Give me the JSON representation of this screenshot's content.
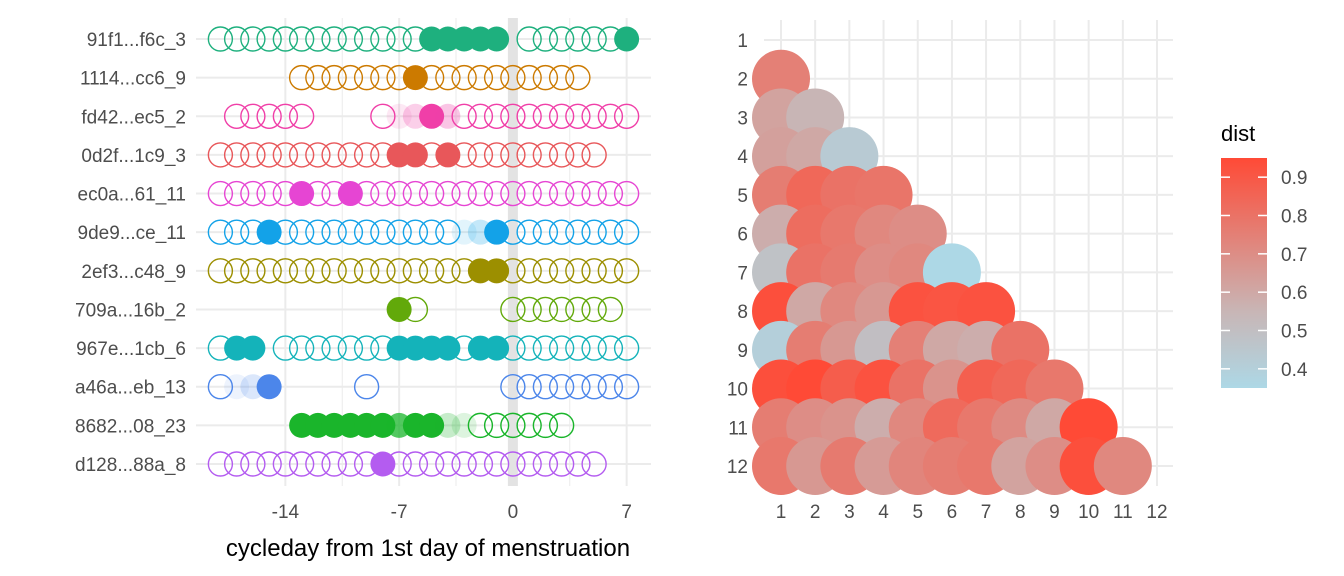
{
  "chart_data": [
    {
      "type": "scatter",
      "xlabel": "cycleday from 1st day of menstruation",
      "ylabel": "",
      "xlim": [
        -19.5,
        8.5
      ],
      "xticks": [
        -14,
        -7,
        0,
        7
      ],
      "xtick_labels": [
        "-14",
        "-7",
        "0",
        "7"
      ],
      "grid": true,
      "reference_line_x": 0,
      "series": [
        {
          "name": "91f1...f6c_3",
          "color": "#1EB07E",
          "open": [
            -18,
            -17,
            -16,
            -15,
            -14,
            -13,
            -12,
            -11,
            -10,
            -9,
            -8,
            -7,
            -6,
            1,
            2,
            3,
            4,
            5,
            6
          ],
          "filled": [
            {
              "x": -5,
              "a": 1
            },
            {
              "x": -4,
              "a": 1
            },
            {
              "x": -3,
              "a": 1
            },
            {
              "x": -2,
              "a": 1
            },
            {
              "x": -1,
              "a": 1
            },
            {
              "x": 7,
              "a": 1
            }
          ]
        },
        {
          "name": "1114...cc6_9",
          "color": "#CC7A00",
          "open": [
            -13,
            -12,
            -11,
            -10,
            -9,
            -8,
            -7,
            -5,
            -4,
            -3,
            -2,
            -1,
            0,
            1,
            2,
            3,
            4
          ],
          "filled": [
            {
              "x": -6,
              "a": 1
            }
          ]
        },
        {
          "name": "fd42...ec5_2",
          "color": "#F03FA8",
          "open": [
            -17,
            -16,
            -15,
            -14,
            -13,
            -8,
            -3,
            -2,
            -1,
            0,
            1,
            2,
            3,
            4,
            5,
            6,
            7
          ],
          "filled": [
            {
              "x": -7,
              "a": 0.12
            },
            {
              "x": -6,
              "a": 0.25
            },
            {
              "x": -5,
              "a": 1
            },
            {
              "x": -4,
              "a": 0.3
            }
          ]
        },
        {
          "name": "0d2f...1c9_3",
          "color": "#E8575A",
          "open": [
            -18,
            -17,
            -16,
            -15,
            -14,
            -13,
            -12,
            -11,
            -10,
            -9,
            -8,
            -5,
            -3,
            -2,
            -1,
            0,
            1,
            2,
            3,
            4,
            5
          ],
          "filled": [
            {
              "x": -7,
              "a": 1
            },
            {
              "x": -6,
              "a": 1
            },
            {
              "x": -4,
              "a": 1
            }
          ]
        },
        {
          "name": "ec0a...61_11",
          "color": "#E645D3",
          "open": [
            -18,
            -17,
            -16,
            -15,
            -14,
            -12,
            -11,
            -9,
            -8,
            -7,
            -6,
            -5,
            -4,
            -3,
            -2,
            -1,
            0,
            1,
            2,
            3,
            4,
            5,
            6,
            7
          ],
          "filled": [
            {
              "x": -13,
              "a": 1
            },
            {
              "x": -10,
              "a": 1
            }
          ]
        },
        {
          "name": "9de9...ce_11",
          "color": "#13A2E8",
          "open": [
            -18,
            -17,
            -16,
            -14,
            -13,
            -12,
            -11,
            -10,
            -9,
            -8,
            -7,
            -6,
            -5,
            -4,
            0,
            1,
            2,
            3,
            4,
            5,
            6,
            7
          ],
          "filled": [
            {
              "x": -15,
              "a": 1
            },
            {
              "x": -3,
              "a": 0.12
            },
            {
              "x": -2,
              "a": 0.25
            },
            {
              "x": -1,
              "a": 1
            }
          ]
        },
        {
          "name": "2ef3...c48_9",
          "color": "#9C8F00",
          "open": [
            -18,
            -17,
            -16,
            -15,
            -14,
            -13,
            -12,
            -11,
            -10,
            -9,
            -8,
            -7,
            -6,
            -5,
            -4,
            -3,
            0,
            1,
            2,
            3,
            4,
            5,
            6,
            7
          ],
          "filled": [
            {
              "x": -2,
              "a": 1
            },
            {
              "x": -1,
              "a": 1
            }
          ]
        },
        {
          "name": "709a...16b_2",
          "color": "#62A90A",
          "open": [
            -6,
            0,
            1,
            2,
            3,
            4,
            5,
            6
          ],
          "filled": [
            {
              "x": -7,
              "a": 1
            }
          ]
        },
        {
          "name": "967e...1cb_6",
          "color": "#14B3BA",
          "open": [
            -18,
            -14,
            -13,
            -12,
            -11,
            -10,
            -9,
            -8,
            -3,
            0,
            1,
            2,
            3,
            4,
            5,
            6,
            7
          ],
          "filled": [
            {
              "x": -17,
              "a": 1
            },
            {
              "x": -16,
              "a": 1
            },
            {
              "x": -7,
              "a": 1
            },
            {
              "x": -6,
              "a": 1
            },
            {
              "x": -5,
              "a": 1
            },
            {
              "x": -4,
              "a": 1
            },
            {
              "x": -2,
              "a": 1
            },
            {
              "x": -1,
              "a": 1
            }
          ]
        },
        {
          "name": "a46a...eb_13",
          "color": "#4C86EA",
          "open": [
            -18,
            -9,
            0,
            1,
            2,
            3,
            4,
            5,
            6,
            7
          ],
          "filled": [
            {
              "x": -17,
              "a": 0.1
            },
            {
              "x": -16,
              "a": 0.2
            },
            {
              "x": -15,
              "a": 1
            }
          ]
        },
        {
          "name": "8682...08_23",
          "color": "#1AB52B",
          "open": [
            -2,
            -1,
            0,
            1,
            2,
            3
          ],
          "filled": [
            {
              "x": -13,
              "a": 1
            },
            {
              "x": -12,
              "a": 1
            },
            {
              "x": -11,
              "a": 1
            },
            {
              "x": -10,
              "a": 1
            },
            {
              "x": -9,
              "a": 1
            },
            {
              "x": -8,
              "a": 1
            },
            {
              "x": -7,
              "a": 0.75
            },
            {
              "x": -6,
              "a": 1
            },
            {
              "x": -5,
              "a": 1
            },
            {
              "x": -4,
              "a": 0.25
            },
            {
              "x": -3,
              "a": 0.15
            }
          ]
        },
        {
          "name": "d128...88a_8",
          "color": "#B45CF0",
          "open": [
            -18,
            -17,
            -16,
            -15,
            -14,
            -13,
            -12,
            -11,
            -10,
            -9,
            -7,
            -6,
            -5,
            -4,
            -3,
            -2,
            -1,
            0,
            1,
            2,
            3,
            4,
            5
          ],
          "filled": [
            {
              "x": -8,
              "a": 1
            }
          ]
        }
      ]
    },
    {
      "type": "heatmap",
      "xlabel": "",
      "ylabel": "",
      "x_categories": [
        "1",
        "2",
        "3",
        "4",
        "5",
        "6",
        "7",
        "8",
        "9",
        "10",
        "11",
        "12"
      ],
      "y_categories": [
        "1",
        "2",
        "3",
        "4",
        "5",
        "6",
        "7",
        "8",
        "9",
        "10",
        "11",
        "12"
      ],
      "grid": true,
      "legend": {
        "title": "dist",
        "placement": "right",
        "range": [
          0.35,
          0.95
        ],
        "ticks": [
          0.9,
          0.8,
          0.7,
          0.6,
          0.5,
          0.4
        ],
        "tick_labels": [
          "0.9",
          "0.8",
          "0.7",
          "0.6",
          "0.5",
          "0.4"
        ],
        "low_color": "#ADD8E6",
        "high_color": "#FF4A36"
      },
      "cells": [
        {
          "row": 2,
          "col": 1,
          "value": 0.75
        },
        {
          "row": 3,
          "col": 1,
          "value": 0.62
        },
        {
          "row": 3,
          "col": 2,
          "value": 0.55
        },
        {
          "row": 4,
          "col": 1,
          "value": 0.63
        },
        {
          "row": 4,
          "col": 2,
          "value": 0.6
        },
        {
          "row": 4,
          "col": 3,
          "value": 0.43
        },
        {
          "row": 5,
          "col": 1,
          "value": 0.76
        },
        {
          "row": 5,
          "col": 2,
          "value": 0.84
        },
        {
          "row": 5,
          "col": 3,
          "value": 0.8
        },
        {
          "row": 5,
          "col": 4,
          "value": 0.79
        },
        {
          "row": 6,
          "col": 1,
          "value": 0.58
        },
        {
          "row": 6,
          "col": 2,
          "value": 0.82
        },
        {
          "row": 6,
          "col": 3,
          "value": 0.78
        },
        {
          "row": 6,
          "col": 4,
          "value": 0.72
        },
        {
          "row": 6,
          "col": 5,
          "value": 0.7
        },
        {
          "row": 7,
          "col": 1,
          "value": 0.48
        },
        {
          "row": 7,
          "col": 2,
          "value": 0.8
        },
        {
          "row": 7,
          "col": 3,
          "value": 0.77
        },
        {
          "row": 7,
          "col": 4,
          "value": 0.7
        },
        {
          "row": 7,
          "col": 5,
          "value": 0.72
        },
        {
          "row": 7,
          "col": 6,
          "value": 0.35
        },
        {
          "row": 8,
          "col": 1,
          "value": 0.93
        },
        {
          "row": 8,
          "col": 2,
          "value": 0.6
        },
        {
          "row": 8,
          "col": 3,
          "value": 0.72
        },
        {
          "row": 8,
          "col": 4,
          "value": 0.66
        },
        {
          "row": 8,
          "col": 5,
          "value": 0.92
        },
        {
          "row": 8,
          "col": 6,
          "value": 0.91
        },
        {
          "row": 8,
          "col": 7,
          "value": 0.92
        },
        {
          "row": 9,
          "col": 1,
          "value": 0.4
        },
        {
          "row": 9,
          "col": 2,
          "value": 0.76
        },
        {
          "row": 9,
          "col": 3,
          "value": 0.66
        },
        {
          "row": 9,
          "col": 4,
          "value": 0.5
        },
        {
          "row": 9,
          "col": 5,
          "value": 0.75
        },
        {
          "row": 9,
          "col": 6,
          "value": 0.6
        },
        {
          "row": 9,
          "col": 7,
          "value": 0.58
        },
        {
          "row": 9,
          "col": 8,
          "value": 0.8
        },
        {
          "row": 10,
          "col": 1,
          "value": 0.93
        },
        {
          "row": 10,
          "col": 2,
          "value": 0.96
        },
        {
          "row": 10,
          "col": 3,
          "value": 0.88
        },
        {
          "row": 10,
          "col": 4,
          "value": 0.92
        },
        {
          "row": 10,
          "col": 5,
          "value": 0.8
        },
        {
          "row": 10,
          "col": 6,
          "value": 0.68
        },
        {
          "row": 10,
          "col": 7,
          "value": 0.87
        },
        {
          "row": 10,
          "col": 8,
          "value": 0.84
        },
        {
          "row": 10,
          "col": 9,
          "value": 0.78
        },
        {
          "row": 11,
          "col": 1,
          "value": 0.76
        },
        {
          "row": 11,
          "col": 2,
          "value": 0.7
        },
        {
          "row": 11,
          "col": 3,
          "value": 0.68
        },
        {
          "row": 11,
          "col": 4,
          "value": 0.58
        },
        {
          "row": 11,
          "col": 5,
          "value": 0.72
        },
        {
          "row": 11,
          "col": 6,
          "value": 0.83
        },
        {
          "row": 11,
          "col": 7,
          "value": 0.78
        },
        {
          "row": 11,
          "col": 8,
          "value": 0.71
        },
        {
          "row": 11,
          "col": 9,
          "value": 0.6
        },
        {
          "row": 11,
          "col": 10,
          "value": 0.96
        },
        {
          "row": 12,
          "col": 1,
          "value": 0.78
        },
        {
          "row": 12,
          "col": 2,
          "value": 0.66
        },
        {
          "row": 12,
          "col": 3,
          "value": 0.77
        },
        {
          "row": 12,
          "col": 4,
          "value": 0.65
        },
        {
          "row": 12,
          "col": 5,
          "value": 0.73
        },
        {
          "row": 12,
          "col": 6,
          "value": 0.76
        },
        {
          "row": 12,
          "col": 7,
          "value": 0.78
        },
        {
          "row": 12,
          "col": 8,
          "value": 0.62
        },
        {
          "row": 12,
          "col": 9,
          "value": 0.7
        },
        {
          "row": 12,
          "col": 10,
          "value": 0.93
        },
        {
          "row": 12,
          "col": 11,
          "value": 0.72
        }
      ]
    }
  ]
}
